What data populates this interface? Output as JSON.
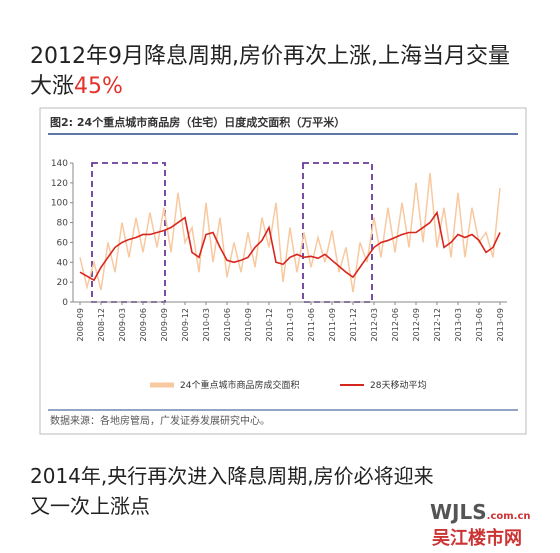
{
  "header": {
    "line1": "2012年9月降息周期,房价再次上涨,上海当月交量",
    "line2": "大涨",
    "highlight": "45%"
  },
  "chart_data": {
    "type": "line",
    "title": "图2:  24个重点城市商品房（住宅）日度成交面积（万平米）",
    "source": "数据来源：各地房管局，广发证券发展研究中心。",
    "x": [
      0,
      1,
      2,
      3,
      4,
      5,
      6,
      7,
      8,
      9,
      10,
      11,
      12,
      13,
      14,
      15,
      16,
      17,
      18,
      19,
      20,
      21,
      22,
      23,
      24,
      25,
      26,
      27,
      28,
      29,
      30,
      31,
      32,
      33,
      34,
      35,
      36,
      37,
      38,
      39,
      40,
      41,
      42,
      43,
      44,
      45,
      46,
      47,
      48,
      49,
      50,
      51,
      52,
      53,
      54,
      55,
      56,
      57,
      58,
      59,
      60
    ],
    "series": [
      {
        "name": "24个重点城市商品房成交面积",
        "color": "#f8c9a0",
        "values": [
          45,
          15,
          40,
          12,
          60,
          30,
          80,
          45,
          85,
          50,
          90,
          55,
          95,
          50,
          110,
          60,
          75,
          30,
          100,
          40,
          85,
          25,
          60,
          30,
          70,
          35,
          85,
          55,
          100,
          20,
          75,
          30,
          70,
          35,
          65,
          40,
          72,
          30,
          55,
          10,
          60,
          40,
          85,
          45,
          95,
          50,
          100,
          55,
          120,
          60,
          130,
          55,
          95,
          45,
          110,
          45,
          95,
          60,
          70,
          45,
          115
        ]
      },
      {
        "name": "28天移动平均",
        "color": "#d7261e",
        "values": [
          30,
          26,
          22,
          35,
          45,
          55,
          60,
          63,
          65,
          68,
          68,
          70,
          72,
          75,
          80,
          85,
          50,
          45,
          68,
          70,
          55,
          42,
          40,
          42,
          45,
          55,
          62,
          75,
          40,
          38,
          45,
          48,
          45,
          46,
          44,
          48,
          42,
          36,
          30,
          25,
          35,
          45,
          55,
          60,
          62,
          65,
          68,
          70,
          70,
          75,
          80,
          90,
          55,
          60,
          68,
          65,
          68,
          62,
          50,
          55,
          70
        ]
      }
    ],
    "xlim": [
      -1,
      61
    ],
    "ylim": [
      0,
      140
    ],
    "xticks": [
      {
        "value": 0,
        "label": "2008-09"
      },
      {
        "value": 3,
        "label": "2008-12"
      },
      {
        "value": 6,
        "label": "2009-03"
      },
      {
        "value": 9,
        "label": "2009-06"
      },
      {
        "value": 12,
        "label": "2009-09"
      },
      {
        "value": 15,
        "label": "2009-12"
      },
      {
        "value": 18,
        "label": "2010-03"
      },
      {
        "value": 21,
        "label": "2010-06"
      },
      {
        "value": 24,
        "label": "2010-09"
      },
      {
        "value": 27,
        "label": "2010-12"
      },
      {
        "value": 30,
        "label": "2011-03"
      },
      {
        "value": 33,
        "label": "2011-06"
      },
      {
        "value": 36,
        "label": "2011-09"
      },
      {
        "value": 39,
        "label": "2011-12"
      },
      {
        "value": 42,
        "label": "2012-03"
      },
      {
        "value": 45,
        "label": "2012-06"
      },
      {
        "value": 48,
        "label": "2012-09"
      },
      {
        "value": 51,
        "label": "2012-12"
      },
      {
        "value": 54,
        "label": "2013-03"
      },
      {
        "value": 57,
        "label": "2013-06"
      },
      {
        "value": 60,
        "label": "2013-09"
      }
    ],
    "yticks": [
      0,
      20,
      40,
      60,
      80,
      100,
      120,
      140
    ]
  },
  "footer": {
    "line1": "2014年,央行再次进入降息周期,房价必将迎来",
    "line2": "又一次上涨点"
  },
  "watermark": {
    "site": "WJLS",
    "domain": ".com.cn",
    "name": "吴江楼市网"
  }
}
